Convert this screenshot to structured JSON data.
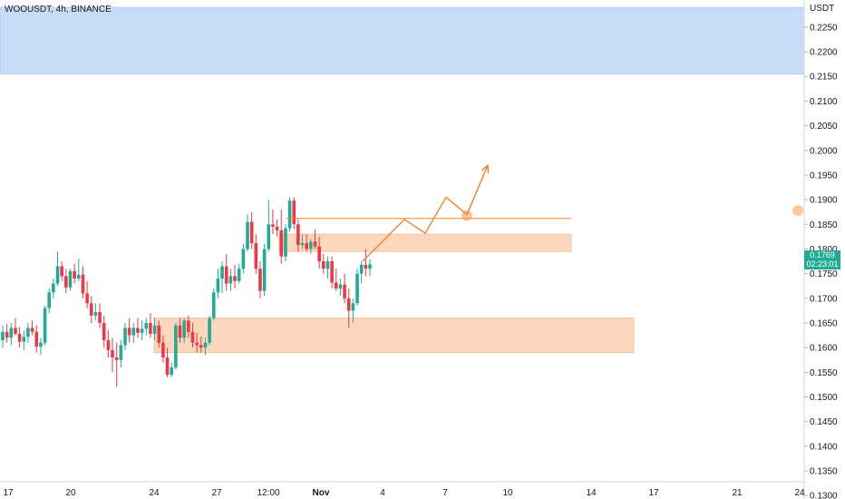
{
  "header": {
    "symbol_line": "WOOUSDT, 4h, BINANCE"
  },
  "axis": {
    "currency": "USDT"
  },
  "last_price": {
    "price": "0.1769",
    "countdown": "02:23:01",
    "color": "#22ab94"
  },
  "colors": {
    "up": "#22ab94",
    "down": "#f23645",
    "resistance_zone": "#c9dcf7",
    "demand_zone": "#fbd8bd",
    "projection": "#f5822a"
  },
  "chart_data": {
    "type": "candlestick",
    "title": "WOOUSDT, 4h, BINANCE",
    "ylabel": "USDT",
    "ylim": [
      0.1293,
      0.2305
    ],
    "y_ticks": [
      "0.2250",
      "0.2200",
      "0.2150",
      "0.2100",
      "0.2050",
      "0.2000",
      "0.1950",
      "0.1900",
      "0.1850",
      "0.1800",
      "0.1750",
      "0.1700",
      "0.1650",
      "0.1600",
      "0.1550",
      "0.1500",
      "0.1450",
      "0.1400",
      "0.1350",
      "0.1300"
    ],
    "x_ticks": [
      "17",
      "20",
      "24",
      "27",
      "12:00",
      "Nov",
      "4",
      "7",
      "10",
      "14",
      "17",
      "21",
      "24"
    ],
    "candles": [
      [
        0.1615,
        0.1645,
        0.16,
        0.1632
      ],
      [
        0.1632,
        0.1648,
        0.161,
        0.162
      ],
      [
        0.162,
        0.165,
        0.1605,
        0.164
      ],
      [
        0.164,
        0.166,
        0.1625,
        0.1628
      ],
      [
        0.1628,
        0.1642,
        0.16,
        0.1612
      ],
      [
        0.1612,
        0.1635,
        0.1595,
        0.1622
      ],
      [
        0.1622,
        0.165,
        0.161,
        0.164
      ],
      [
        0.164,
        0.1655,
        0.1625,
        0.1632
      ],
      [
        0.1632,
        0.1645,
        0.159,
        0.1602
      ],
      [
        0.1602,
        0.162,
        0.1585,
        0.161
      ],
      [
        0.161,
        0.1685,
        0.1605,
        0.168
      ],
      [
        0.168,
        0.172,
        0.167,
        0.1712
      ],
      [
        0.1712,
        0.174,
        0.17,
        0.173
      ],
      [
        0.173,
        0.1795,
        0.1725,
        0.1765
      ],
      [
        0.1765,
        0.1775,
        0.1735,
        0.1745
      ],
      [
        0.1745,
        0.176,
        0.171,
        0.1722
      ],
      [
        0.1722,
        0.176,
        0.1715,
        0.1755
      ],
      [
        0.1755,
        0.177,
        0.173,
        0.174
      ],
      [
        0.174,
        0.178,
        0.1735,
        0.1748
      ],
      [
        0.1748,
        0.1765,
        0.17,
        0.171
      ],
      [
        0.171,
        0.1735,
        0.168,
        0.169
      ],
      [
        0.169,
        0.1705,
        0.165,
        0.1665
      ],
      [
        0.1665,
        0.169,
        0.1655,
        0.1672
      ],
      [
        0.1672,
        0.169,
        0.164,
        0.165
      ],
      [
        0.165,
        0.1665,
        0.16,
        0.1615
      ],
      [
        0.1615,
        0.1635,
        0.158,
        0.1595
      ],
      [
        0.1595,
        0.162,
        0.155,
        0.158
      ],
      [
        0.158,
        0.161,
        0.152,
        0.1575
      ],
      [
        0.1575,
        0.1615,
        0.156,
        0.1605
      ],
      [
        0.1605,
        0.165,
        0.1595,
        0.164
      ],
      [
        0.164,
        0.166,
        0.161,
        0.1625
      ],
      [
        0.1625,
        0.165,
        0.161,
        0.164
      ],
      [
        0.164,
        0.166,
        0.162,
        0.163
      ],
      [
        0.163,
        0.1655,
        0.1615,
        0.1638
      ],
      [
        0.1638,
        0.166,
        0.1625,
        0.165
      ],
      [
        0.165,
        0.167,
        0.162,
        0.1628
      ],
      [
        0.1628,
        0.166,
        0.1615,
        0.1645
      ],
      [
        0.1645,
        0.1655,
        0.16,
        0.161
      ],
      [
        0.161,
        0.1625,
        0.157,
        0.158
      ],
      [
        0.158,
        0.16,
        0.154,
        0.1545
      ],
      [
        0.1545,
        0.157,
        0.154,
        0.156
      ],
      [
        0.156,
        0.165,
        0.1555,
        0.1645
      ],
      [
        0.1645,
        0.166,
        0.161,
        0.162
      ],
      [
        0.162,
        0.166,
        0.161,
        0.1655
      ],
      [
        0.1655,
        0.1665,
        0.162,
        0.1632
      ],
      [
        0.1632,
        0.165,
        0.16,
        0.161
      ],
      [
        0.161,
        0.163,
        0.159,
        0.1605
      ],
      [
        0.1605,
        0.1622,
        0.159,
        0.16
      ],
      [
        0.16,
        0.162,
        0.1585,
        0.161
      ],
      [
        0.161,
        0.1665,
        0.1605,
        0.166
      ],
      [
        0.166,
        0.172,
        0.1655,
        0.1712
      ],
      [
        0.1712,
        0.176,
        0.17,
        0.174
      ],
      [
        0.174,
        0.1775,
        0.171,
        0.1765
      ],
      [
        0.1765,
        0.179,
        0.1715,
        0.173
      ],
      [
        0.173,
        0.176,
        0.1715,
        0.1745
      ],
      [
        0.1745,
        0.1768,
        0.172,
        0.1735
      ],
      [
        0.1735,
        0.177,
        0.173,
        0.176
      ],
      [
        0.176,
        0.181,
        0.175,
        0.18
      ],
      [
        0.18,
        0.187,
        0.1795,
        0.1855
      ],
      [
        0.1855,
        0.1875,
        0.18,
        0.1812
      ],
      [
        0.1812,
        0.183,
        0.175,
        0.176
      ],
      [
        0.176,
        0.1775,
        0.17,
        0.1715
      ],
      [
        0.1715,
        0.181,
        0.1705,
        0.18
      ],
      [
        0.18,
        0.19,
        0.1795,
        0.185
      ],
      [
        0.185,
        0.188,
        0.183,
        0.1845
      ],
      [
        0.1845,
        0.186,
        0.1825,
        0.1838
      ],
      [
        0.1838,
        0.188,
        0.177,
        0.1785
      ],
      [
        0.1785,
        0.185,
        0.1775,
        0.1842
      ],
      [
        0.1842,
        0.1905,
        0.1835,
        0.1898
      ],
      [
        0.1898,
        0.1905,
        0.184,
        0.185
      ],
      [
        0.185,
        0.186,
        0.1795,
        0.1808
      ],
      [
        0.1808,
        0.183,
        0.18,
        0.1812
      ],
      [
        0.1812,
        0.183,
        0.1795,
        0.18
      ],
      [
        0.18,
        0.182,
        0.179,
        0.1815
      ],
      [
        0.1815,
        0.184,
        0.18,
        0.1805
      ],
      [
        0.1805,
        0.1825,
        0.176,
        0.1775
      ],
      [
        0.1775,
        0.179,
        0.175,
        0.176
      ],
      [
        0.176,
        0.1785,
        0.174,
        0.1775
      ],
      [
        0.1775,
        0.1785,
        0.172,
        0.1732
      ],
      [
        0.1732,
        0.176,
        0.1715,
        0.172
      ],
      [
        0.172,
        0.174,
        0.1705,
        0.1728
      ],
      [
        0.1728,
        0.175,
        0.169,
        0.17
      ],
      [
        0.17,
        0.172,
        0.164,
        0.1675
      ],
      [
        0.1675,
        0.17,
        0.165,
        0.169
      ],
      [
        0.169,
        0.176,
        0.1685,
        0.175
      ],
      [
        0.175,
        0.1775,
        0.173,
        0.1768
      ],
      [
        0.1768,
        0.18,
        0.1745,
        0.176
      ],
      [
        0.176,
        0.178,
        0.1745,
        0.1769
      ]
    ],
    "annotations": [
      {
        "type": "zone",
        "label": "resistance",
        "color": "#c9dcf7",
        "x": [
          "start",
          "axis"
        ],
        "y": [
          0.2155,
          0.229
        ]
      },
      {
        "type": "zone",
        "label": "demand-upper",
        "color": "#fbd8bd",
        "x": [
          "Oct 30",
          "Nov 13"
        ],
        "y": [
          0.1795,
          0.183
        ]
      },
      {
        "type": "zone",
        "label": "demand-lower",
        "color": "#fbd8bd",
        "x": [
          "Oct 24",
          "Nov 16"
        ],
        "y": [
          0.159,
          0.166
        ]
      },
      {
        "type": "hline",
        "color": "#f5822a",
        "x": [
          "12:00",
          "Nov 13"
        ],
        "y": 0.1862
      },
      {
        "type": "path",
        "color": "#f5822a",
        "points": [
          [
            "Nov 3",
            0.1775
          ],
          [
            "Nov 5",
            0.186
          ],
          [
            "Nov 6",
            0.1832
          ],
          [
            "Nov 7",
            0.1905
          ],
          [
            "Nov 8",
            0.187
          ],
          [
            "Nov 9",
            0.197
          ]
        ]
      },
      {
        "type": "marker",
        "color": "#f5822a",
        "points": [
          [
            "Nov 8",
            0.1868
          ],
          [
            "Nov 24",
            0.1878
          ]
        ]
      }
    ]
  }
}
